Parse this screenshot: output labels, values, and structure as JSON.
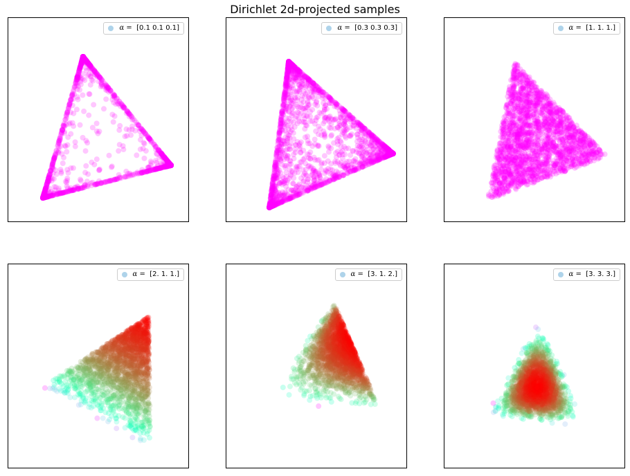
{
  "figure": {
    "title": "Dirichlet 2d-projected samples"
  },
  "chart_data": [
    {
      "type": "scatter",
      "title": "",
      "legend": {
        "prefix": "α =",
        "value": "[0.1 0.1 0.1]",
        "placement": "top-right"
      },
      "alpha": [
        0.1,
        0.1,
        0.1
      ],
      "colormap": "rainbow",
      "grid": false,
      "ticks": false
    },
    {
      "type": "scatter",
      "title": "",
      "legend": {
        "prefix": "α =",
        "value": "[0.3 0.3 0.3]",
        "placement": "top-right"
      },
      "alpha": [
        0.3,
        0.3,
        0.3
      ],
      "colormap": "rainbow",
      "grid": false,
      "ticks": false
    },
    {
      "type": "scatter",
      "title": "",
      "legend": {
        "prefix": "α =",
        "value": "[1. 1. 1.]",
        "placement": "top-right"
      },
      "alpha": [
        1,
        1,
        1
      ],
      "colormap": "rainbow",
      "grid": false,
      "ticks": false
    },
    {
      "type": "scatter",
      "title": "",
      "legend": {
        "prefix": "α =",
        "value": "[2. 1. 1.]",
        "placement": "top-right"
      },
      "alpha": [
        2,
        1,
        1
      ],
      "colormap": "rainbow",
      "grid": false,
      "ticks": false
    },
    {
      "type": "scatter",
      "title": "",
      "legend": {
        "prefix": "α =",
        "value": "[3. 1. 2.]",
        "placement": "top-right"
      },
      "alpha": [
        3,
        1,
        2
      ],
      "colormap": "rainbow",
      "grid": false,
      "ticks": false
    },
    {
      "type": "scatter",
      "title": "",
      "legend": {
        "prefix": "α =",
        "value": "[3. 3. 3.]",
        "placement": "top-right"
      },
      "alpha": [
        3,
        3,
        3
      ],
      "colormap": "rainbow",
      "grid": false,
      "ticks": false
    }
  ]
}
